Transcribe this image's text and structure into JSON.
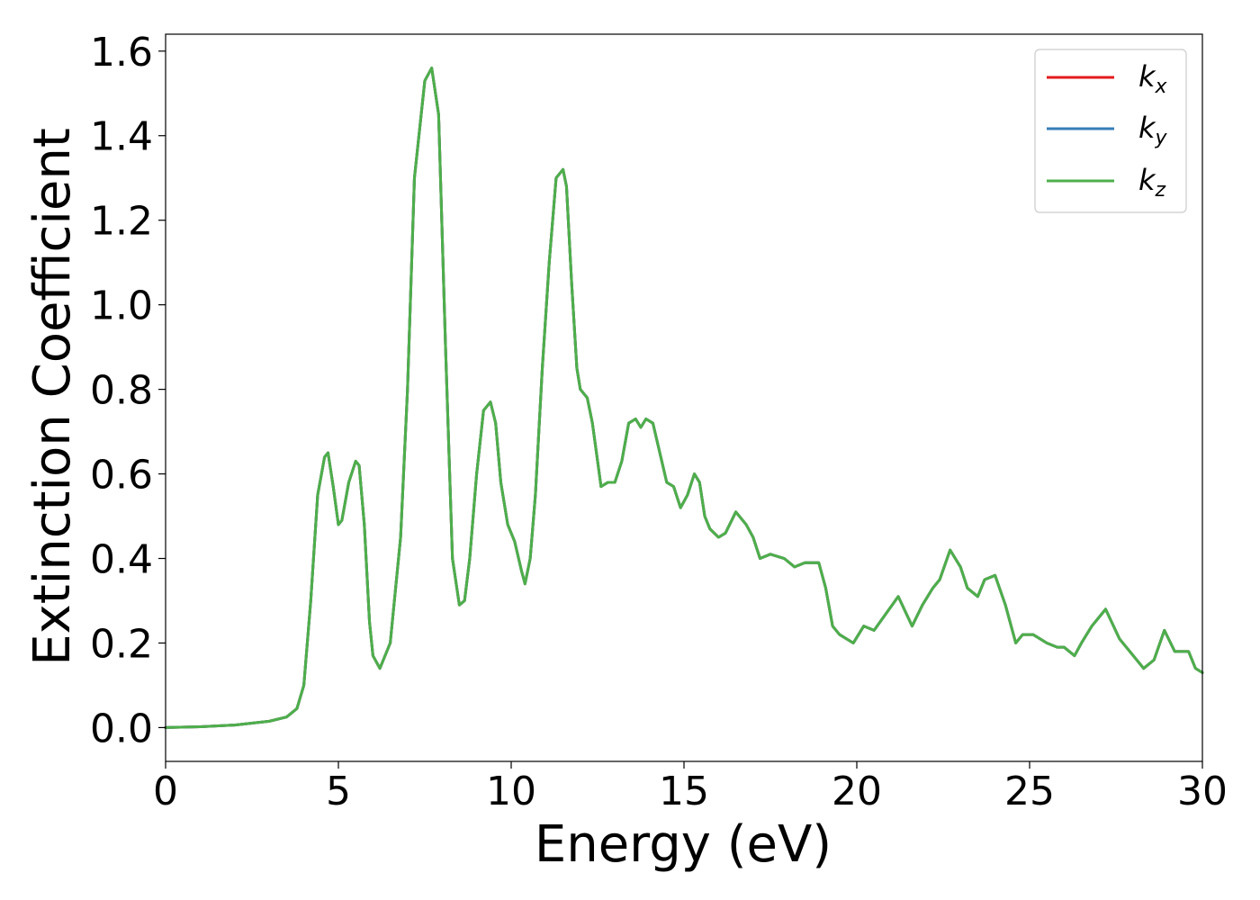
{
  "chart_data": {
    "type": "line",
    "title": "",
    "xlabel": "Energy (eV)",
    "ylabel": "Extinction Coefficient",
    "xlim": [
      0,
      30
    ],
    "ylim": [
      -0.08,
      1.64
    ],
    "xticks": [
      0,
      5,
      10,
      15,
      20,
      25,
      30
    ],
    "xtick_labels": [
      "0",
      "5",
      "10",
      "15",
      "20",
      "25",
      "30"
    ],
    "yticks": [
      0.0,
      0.2,
      0.4,
      0.6,
      0.8,
      1.0,
      1.2,
      1.4,
      1.6
    ],
    "ytick_labels": [
      "0.0",
      "0.2",
      "0.4",
      "0.6",
      "0.8",
      "1.0",
      "1.2",
      "1.4",
      "1.6"
    ],
    "grid": false,
    "legend_position": "top-right",
    "x": [
      0,
      1,
      2,
      3,
      3.5,
      3.8,
      4.0,
      4.2,
      4.4,
      4.6,
      4.7,
      4.85,
      5.0,
      5.1,
      5.3,
      5.5,
      5.6,
      5.75,
      5.9,
      6.0,
      6.2,
      6.5,
      6.8,
      7.0,
      7.2,
      7.5,
      7.7,
      7.9,
      8.1,
      8.3,
      8.5,
      8.65,
      8.8,
      9.0,
      9.2,
      9.4,
      9.55,
      9.7,
      9.9,
      10.1,
      10.3,
      10.4,
      10.55,
      10.7,
      10.9,
      11.1,
      11.3,
      11.5,
      11.6,
      11.75,
      11.9,
      12.0,
      12.1,
      12.2,
      12.35,
      12.5,
      12.6,
      12.8,
      13.0,
      13.2,
      13.4,
      13.6,
      13.75,
      13.9,
      14.1,
      14.3,
      14.5,
      14.7,
      14.9,
      15.1,
      15.3,
      15.45,
      15.6,
      15.75,
      16.0,
      16.2,
      16.5,
      16.8,
      17.0,
      17.2,
      17.5,
      17.9,
      18.2,
      18.5,
      18.9,
      19.1,
      19.3,
      19.5,
      19.9,
      20.2,
      20.5,
      21.2,
      21.6,
      21.9,
      22.2,
      22.4,
      22.7,
      23.0,
      23.2,
      23.5,
      23.7,
      24.0,
      24.3,
      24.6,
      24.8,
      25.1,
      25.5,
      25.8,
      26.0,
      26.3,
      26.5,
      26.8,
      27.2,
      27.6,
      28.0,
      28.3,
      28.6,
      28.9,
      29.2,
      29.4,
      29.6,
      29.8,
      30.0
    ],
    "series": [
      {
        "name": "kx",
        "color": "#e41a1c",
        "values": [
          0.0,
          0.002,
          0.006,
          0.015,
          0.025,
          0.045,
          0.1,
          0.3,
          0.55,
          0.64,
          0.65,
          0.57,
          0.48,
          0.49,
          0.58,
          0.63,
          0.62,
          0.48,
          0.25,
          0.17,
          0.14,
          0.2,
          0.45,
          0.8,
          1.3,
          1.53,
          1.56,
          1.45,
          0.9,
          0.4,
          0.29,
          0.3,
          0.4,
          0.6,
          0.75,
          0.77,
          0.72,
          0.58,
          0.48,
          0.44,
          0.37,
          0.34,
          0.4,
          0.55,
          0.85,
          1.1,
          1.3,
          1.32,
          1.28,
          1.05,
          0.85,
          0.8,
          0.79,
          0.78,
          0.72,
          0.63,
          0.57,
          0.58,
          0.58,
          0.63,
          0.72,
          0.73,
          0.71,
          0.73,
          0.72,
          0.65,
          0.58,
          0.57,
          0.52,
          0.55,
          0.6,
          0.58,
          0.5,
          0.47,
          0.45,
          0.46,
          0.51,
          0.48,
          0.45,
          0.4,
          0.41,
          0.4,
          0.38,
          0.39,
          0.39,
          0.33,
          0.24,
          0.22,
          0.2,
          0.24,
          0.23,
          0.31,
          0.24,
          0.29,
          0.33,
          0.35,
          0.42,
          0.38,
          0.33,
          0.31,
          0.35,
          0.36,
          0.29,
          0.2,
          0.22,
          0.22,
          0.2,
          0.19,
          0.19,
          0.17,
          0.2,
          0.24,
          0.28,
          0.21,
          0.17,
          0.14,
          0.16,
          0.23,
          0.18,
          0.18,
          0.18,
          0.14,
          0.13
        ]
      },
      {
        "name": "ky",
        "color": "#377eb8",
        "values": [
          0.0,
          0.002,
          0.006,
          0.015,
          0.025,
          0.045,
          0.1,
          0.3,
          0.55,
          0.64,
          0.65,
          0.57,
          0.48,
          0.49,
          0.58,
          0.63,
          0.62,
          0.48,
          0.25,
          0.17,
          0.14,
          0.2,
          0.45,
          0.8,
          1.3,
          1.53,
          1.56,
          1.45,
          0.9,
          0.4,
          0.29,
          0.3,
          0.4,
          0.6,
          0.75,
          0.77,
          0.72,
          0.58,
          0.48,
          0.44,
          0.37,
          0.34,
          0.4,
          0.55,
          0.85,
          1.1,
          1.3,
          1.32,
          1.28,
          1.05,
          0.85,
          0.8,
          0.79,
          0.78,
          0.72,
          0.63,
          0.57,
          0.58,
          0.58,
          0.63,
          0.72,
          0.73,
          0.71,
          0.73,
          0.72,
          0.65,
          0.58,
          0.57,
          0.52,
          0.55,
          0.6,
          0.58,
          0.5,
          0.47,
          0.45,
          0.46,
          0.51,
          0.48,
          0.45,
          0.4,
          0.41,
          0.4,
          0.38,
          0.39,
          0.39,
          0.33,
          0.24,
          0.22,
          0.2,
          0.24,
          0.23,
          0.31,
          0.24,
          0.29,
          0.33,
          0.35,
          0.42,
          0.38,
          0.33,
          0.31,
          0.35,
          0.36,
          0.29,
          0.2,
          0.22,
          0.22,
          0.2,
          0.19,
          0.19,
          0.17,
          0.2,
          0.24,
          0.28,
          0.21,
          0.17,
          0.14,
          0.16,
          0.23,
          0.18,
          0.18,
          0.18,
          0.14,
          0.13
        ]
      },
      {
        "name": "kz",
        "color": "#4daf4a",
        "values": [
          0.0,
          0.002,
          0.006,
          0.015,
          0.025,
          0.045,
          0.1,
          0.3,
          0.55,
          0.64,
          0.65,
          0.57,
          0.48,
          0.49,
          0.58,
          0.63,
          0.62,
          0.48,
          0.25,
          0.17,
          0.14,
          0.2,
          0.45,
          0.8,
          1.3,
          1.53,
          1.56,
          1.45,
          0.9,
          0.4,
          0.29,
          0.3,
          0.4,
          0.6,
          0.75,
          0.77,
          0.72,
          0.58,
          0.48,
          0.44,
          0.37,
          0.34,
          0.4,
          0.55,
          0.85,
          1.1,
          1.3,
          1.32,
          1.28,
          1.05,
          0.85,
          0.8,
          0.79,
          0.78,
          0.72,
          0.63,
          0.57,
          0.58,
          0.58,
          0.63,
          0.72,
          0.73,
          0.71,
          0.73,
          0.72,
          0.65,
          0.58,
          0.57,
          0.52,
          0.55,
          0.6,
          0.58,
          0.5,
          0.47,
          0.45,
          0.46,
          0.51,
          0.48,
          0.45,
          0.4,
          0.41,
          0.4,
          0.38,
          0.39,
          0.39,
          0.33,
          0.24,
          0.22,
          0.2,
          0.24,
          0.23,
          0.31,
          0.24,
          0.29,
          0.33,
          0.35,
          0.42,
          0.38,
          0.33,
          0.31,
          0.35,
          0.36,
          0.29,
          0.2,
          0.22,
          0.22,
          0.2,
          0.19,
          0.19,
          0.17,
          0.2,
          0.24,
          0.28,
          0.21,
          0.17,
          0.14,
          0.16,
          0.23,
          0.18,
          0.18,
          0.18,
          0.14,
          0.13
        ]
      }
    ],
    "legend": [
      {
        "symbol": "k",
        "subscript": "x"
      },
      {
        "symbol": "k",
        "subscript": "y"
      },
      {
        "symbol": "k",
        "subscript": "z"
      }
    ]
  }
}
